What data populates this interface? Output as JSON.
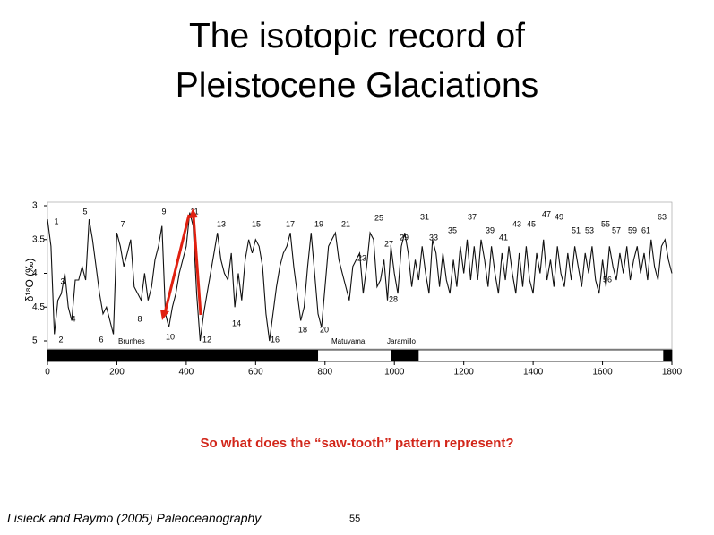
{
  "title_line1": "The isotopic record of",
  "title_line2": "Pleistocene Glaciations",
  "question": "So what does the “saw-tooth” pattern represent?",
  "citation": "Lisieck and Raymo (2005) Paleoceanography",
  "page_number": "55",
  "chart_data": {
    "type": "line",
    "y_label": "δ¹⁸O (‰)",
    "x": [
      0,
      10,
      20,
      30,
      40,
      50,
      60,
      70,
      80,
      90,
      100,
      110,
      120,
      130,
      140,
      150,
      160,
      170,
      180,
      190,
      200,
      210,
      220,
      230,
      240,
      250,
      260,
      270,
      280,
      290,
      300,
      310,
      320,
      330,
      340,
      350,
      360,
      370,
      380,
      390,
      400,
      410,
      420,
      430,
      440,
      450,
      460,
      470,
      480,
      490,
      500,
      510,
      520,
      530,
      540,
      550,
      560,
      570,
      580,
      590,
      600,
      610,
      620,
      630,
      640,
      650,
      660,
      670,
      680,
      690,
      700,
      710,
      720,
      730,
      740,
      750,
      760,
      770,
      780,
      790,
      800,
      810,
      820,
      830,
      840,
      850,
      860,
      870,
      880,
      890,
      900,
      910,
      920,
      930,
      940,
      950,
      960,
      970,
      980,
      990,
      1000,
      1010,
      1020,
      1030,
      1040,
      1050,
      1060,
      1070,
      1080,
      1090,
      1100,
      1110,
      1120,
      1130,
      1140,
      1150,
      1160,
      1170,
      1180,
      1190,
      1200,
      1210,
      1220,
      1230,
      1240,
      1250,
      1260,
      1270,
      1280,
      1290,
      1300,
      1310,
      1320,
      1330,
      1340,
      1350,
      1360,
      1370,
      1380,
      1390,
      1400,
      1410,
      1420,
      1430,
      1440,
      1450,
      1460,
      1470,
      1480,
      1490,
      1500,
      1510,
      1520,
      1530,
      1540,
      1550,
      1560,
      1570,
      1580,
      1590,
      1600,
      1610,
      1620,
      1630,
      1640,
      1650,
      1660,
      1670,
      1680,
      1690,
      1700,
      1710,
      1720,
      1730,
      1740,
      1750,
      1760,
      1770,
      1780,
      1790,
      1800
    ],
    "series": [
      {
        "color": "#111111",
        "values": [
          3.2,
          3.6,
          4.9,
          4.4,
          4.3,
          4.0,
          4.5,
          4.7,
          4.1,
          4.1,
          3.9,
          4.1,
          3.2,
          3.5,
          3.9,
          4.3,
          4.6,
          4.5,
          4.7,
          4.9,
          3.4,
          3.6,
          3.9,
          3.7,
          3.5,
          4.2,
          4.3,
          4.4,
          4.0,
          4.4,
          4.2,
          3.8,
          3.6,
          3.3,
          4.6,
          4.8,
          4.5,
          4.3,
          4.0,
          3.8,
          3.6,
          3.1,
          3.3,
          4.3,
          5.0,
          4.6,
          4.3,
          4.0,
          3.7,
          3.4,
          3.8,
          4.0,
          4.1,
          3.7,
          4.5,
          4.0,
          4.4,
          3.8,
          3.5,
          3.7,
          3.5,
          3.6,
          3.9,
          4.6,
          5.0,
          4.6,
          4.2,
          3.9,
          3.7,
          3.6,
          3.4,
          3.9,
          4.3,
          4.7,
          4.5,
          3.9,
          3.4,
          4.0,
          4.6,
          4.8,
          4.2,
          3.6,
          3.5,
          3.4,
          3.8,
          4.0,
          4.2,
          4.4,
          3.9,
          3.8,
          3.7,
          4.3,
          3.9,
          3.4,
          3.5,
          4.2,
          4.1,
          3.8,
          4.4,
          3.6,
          4.0,
          4.3,
          3.6,
          3.4,
          3.7,
          4.2,
          3.8,
          4.1,
          3.6,
          4.0,
          4.3,
          3.5,
          3.7,
          4.2,
          3.7,
          4.1,
          4.3,
          3.8,
          4.2,
          3.6,
          4.0,
          3.5,
          4.1,
          3.6,
          4.1,
          3.5,
          3.8,
          4.2,
          3.6,
          4.0,
          4.3,
          3.7,
          4.1,
          3.6,
          4.0,
          4.3,
          3.7,
          4.2,
          3.6,
          4.1,
          4.3,
          3.7,
          4.0,
          3.5,
          4.1,
          3.8,
          4.2,
          3.6,
          4.0,
          4.2,
          3.7,
          4.1,
          3.6,
          3.9,
          4.2,
          3.7,
          4.0,
          3.6,
          4.1,
          4.3,
          3.8,
          4.2,
          3.6,
          3.9,
          4.1,
          3.7,
          4.0,
          3.6,
          4.1,
          3.8,
          3.6,
          4.0,
          3.7,
          4.1,
          3.5,
          3.9,
          4.1,
          3.6,
          3.5,
          3.8,
          4.0
        ]
      }
    ],
    "xlim": [
      0,
      1800
    ],
    "xticks": [
      0,
      200,
      400,
      600,
      800,
      1000,
      1200,
      1400,
      1600,
      1800
    ],
    "ylim": [
      3,
      5
    ],
    "yticks": [
      3,
      3.5,
      4,
      4.5,
      5
    ],
    "y_inverted": true,
    "annotations": [
      "1",
      "2",
      "3",
      "4",
      "5",
      "6",
      "7",
      "8",
      "9",
      "10",
      "11",
      "12",
      "13",
      "14",
      "15",
      "16",
      "17",
      "18",
      "19",
      "20",
      "21",
      "23",
      "25",
      "27",
      "28",
      "29",
      "31",
      "33",
      "35",
      "37",
      "39",
      "41",
      "43",
      "45",
      "47",
      "49",
      "51",
      "53",
      "55",
      "56",
      "57",
      "59",
      "61",
      "63"
    ],
    "polarity_bands": [
      [
        0,
        780
      ],
      [
        990,
        1070
      ],
      [
        1775,
        1800
      ]
    ],
    "polarity_labels": [
      "Brunhes",
      "Matuyama",
      "Jaramillo"
    ]
  }
}
